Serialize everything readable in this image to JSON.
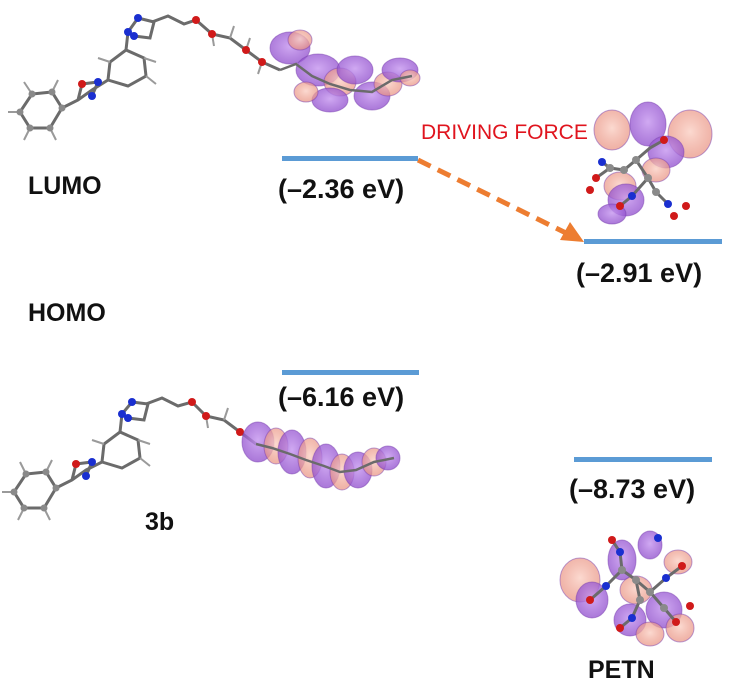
{
  "labels": {
    "lumo": "LUMO",
    "homo": "HOMO",
    "molecule_3b": "3b",
    "molecule_petn": "PETN",
    "driving_force": "DRIVING FORCE"
  },
  "energy_levels": {
    "lumo_3b": "(–2.36 eV)",
    "lumo_petn": "(–2.91 eV)",
    "homo_3b": "(–6.16 eV)",
    "homo_petn": "(–8.73 eV)"
  },
  "colors": {
    "level_line": "#5b9bd5",
    "arrow": "#ed7d31",
    "driving_force_text": "#e0141e",
    "orbital_purple": "#9b59d0",
    "orbital_pink": "#f0a090",
    "atom_carbon": "#8a8a8a",
    "atom_nitrogen": "#1a2fd0",
    "atom_oxygen": "#d01a1a"
  }
}
